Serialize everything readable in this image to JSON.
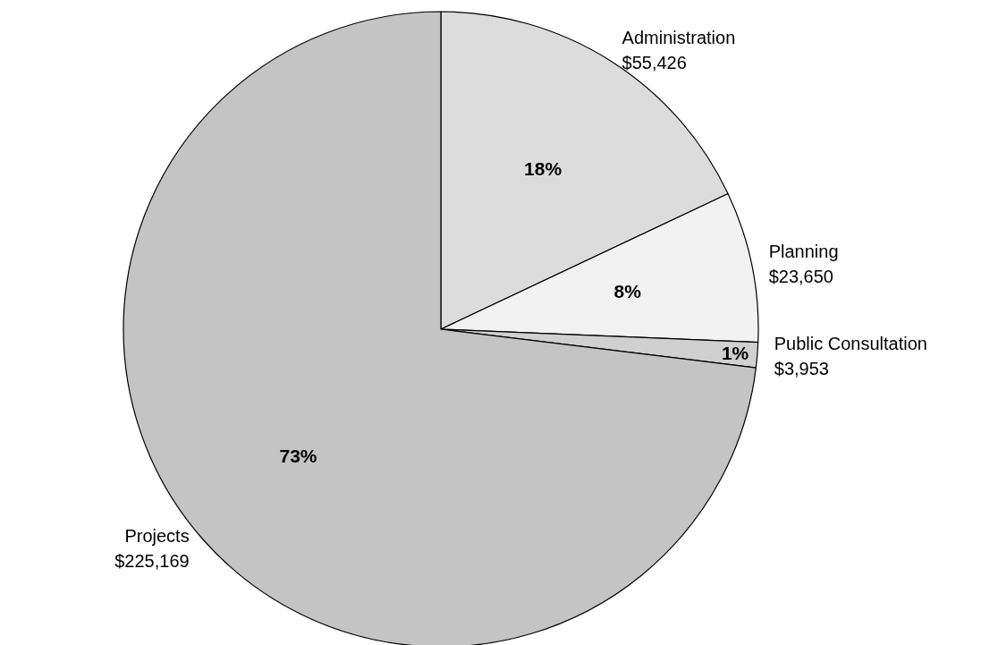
{
  "chart_data": {
    "type": "pie",
    "categories": [
      "Administration",
      "Planning",
      "Public Consultation",
      "Projects"
    ],
    "values": [
      55426,
      23650,
      3953,
      225169
    ],
    "value_labels": [
      "$55,426",
      "$23,650",
      "$3,953",
      "$225,169"
    ],
    "colors": [
      "#dcdcdc",
      "#f2f2f2",
      "#d0d0d0",
      "#c4c4c4"
    ],
    "annotations": [
      {
        "text": "18%",
        "x": "Administration"
      },
      {
        "text": "8%",
        "x": "Planning"
      },
      {
        "text": "1%",
        "x": "Public Consultation"
      },
      {
        "text": "73%",
        "x": "Projects"
      }
    ],
    "legend": false
  }
}
